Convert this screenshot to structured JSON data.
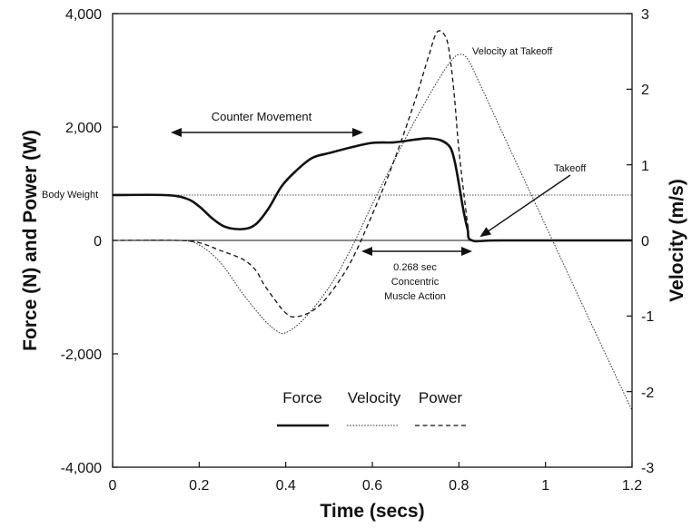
{
  "chart_data": {
    "type": "line",
    "xlabel": "Time (secs)",
    "ylabel_left": "Force (N) and Power (W)",
    "ylabel_right": "Velocity (m/s)",
    "xlim": [
      0,
      1.2
    ],
    "ylim_left": [
      -4000,
      4000
    ],
    "ylim_right": [
      -3,
      3
    ],
    "x_ticks": [
      "0",
      "0.2",
      "0.4",
      "0.6",
      "0.8",
      "1",
      "1.2"
    ],
    "y_left_ticks": [
      "4,000",
      "2,000",
      "0",
      "-2,000",
      "-4,000"
    ],
    "y_right_ticks": [
      "3",
      "2",
      "1",
      "0",
      "-1",
      "-2",
      "-3"
    ],
    "body_weight": 800,
    "series": [
      {
        "name": "Force",
        "axis": "left",
        "style": "solid-thick",
        "x": [
          0,
          0.12,
          0.17,
          0.2,
          0.23,
          0.26,
          0.3,
          0.33,
          0.36,
          0.39,
          0.42,
          0.46,
          0.5,
          0.55,
          0.6,
          0.65,
          0.7,
          0.73,
          0.76,
          0.78,
          0.79,
          0.8,
          0.81,
          0.82,
          0.83,
          0.9,
          1.2
        ],
        "y": [
          800,
          800,
          740,
          600,
          390,
          240,
          200,
          280,
          560,
          950,
          1200,
          1450,
          1540,
          1640,
          1720,
          1730,
          1780,
          1800,
          1760,
          1640,
          1400,
          1000,
          550,
          200,
          0,
          0,
          0
        ]
      },
      {
        "name": "Velocity",
        "axis": "right",
        "style": "dotted",
        "x": [
          0,
          0.15,
          0.2,
          0.25,
          0.3,
          0.35,
          0.38,
          0.4,
          0.44,
          0.5,
          0.55,
          0.6,
          0.65,
          0.7,
          0.75,
          0.78,
          0.8,
          0.82,
          0.85,
          0.9,
          1.0,
          1.1,
          1.2
        ],
        "y": [
          0,
          0,
          -0.06,
          -0.3,
          -0.7,
          -1.05,
          -1.2,
          -1.22,
          -1.05,
          -0.62,
          -0.12,
          0.48,
          1.05,
          1.6,
          2.1,
          2.36,
          2.46,
          2.4,
          2.05,
          1.43,
          0.2,
          -1.03,
          -2.25
        ]
      },
      {
        "name": "Power",
        "axis": "left",
        "style": "dashed",
        "x": [
          0,
          0.15,
          0.2,
          0.25,
          0.3,
          0.33,
          0.35,
          0.38,
          0.4,
          0.42,
          0.46,
          0.5,
          0.55,
          0.6,
          0.65,
          0.7,
          0.73,
          0.75,
          0.77,
          0.78,
          0.79,
          0.8,
          0.82,
          0.83,
          0.9,
          1.2
        ],
        "y": [
          0,
          0,
          -40,
          -180,
          -330,
          -520,
          -780,
          -1100,
          -1280,
          -1350,
          -1250,
          -960,
          -380,
          460,
          1400,
          2500,
          3250,
          3680,
          3580,
          3200,
          2500,
          1600,
          300,
          0,
          0,
          0
        ]
      }
    ],
    "annotations": {
      "counter_movement": "Counter Movement",
      "body_weight": "Body Weight",
      "velocity_takeoff": "Velocity at Takeoff",
      "takeoff": "Takeoff",
      "concentric_line1": "0.268 sec",
      "concentric_line2": "Concentric",
      "concentric_line3": "Muscle Action"
    },
    "legend": {
      "placement": "bottom-center",
      "labels": [
        "Force",
        "Velocity",
        "Power"
      ]
    },
    "grid": false
  }
}
